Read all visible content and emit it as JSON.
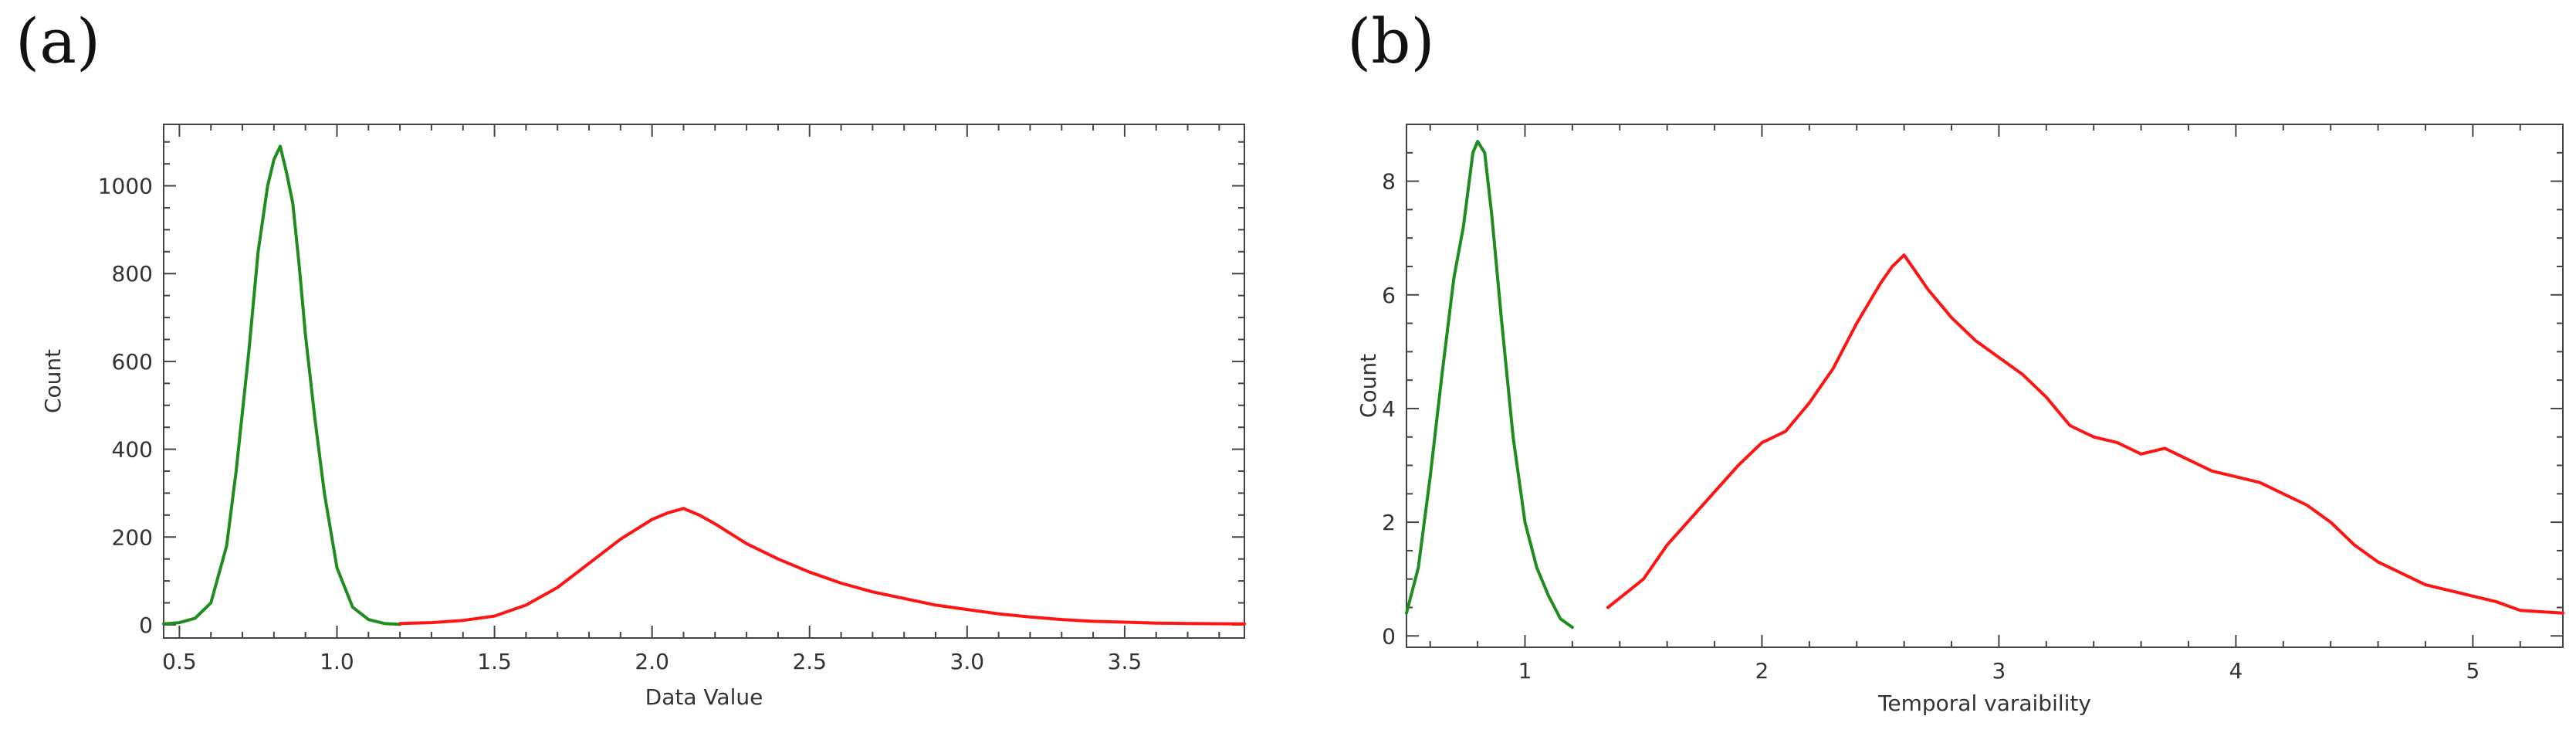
{
  "panels": {
    "a": "(a)",
    "b": "(b)"
  },
  "colors": {
    "green": "#1f8c1f",
    "red": "#ff1414",
    "axis": "#444444"
  },
  "chart_data": [
    {
      "type": "line",
      "xlabel": "Data Value",
      "ylabel": "Count",
      "xlim": [
        0.45,
        3.88
      ],
      "ylim": [
        -30,
        1140
      ],
      "xticks": [
        0.5,
        1.0,
        1.5,
        2.0,
        2.5,
        3.0,
        3.5
      ],
      "xtick_labels": [
        "0.5",
        "1.0",
        "1.5",
        "2.0",
        "2.5",
        "3.0",
        "3.5"
      ],
      "yticks": [
        0,
        200,
        400,
        600,
        800,
        1000
      ],
      "ytick_labels": [
        "0",
        "200",
        "400",
        "600",
        "800",
        "1000"
      ],
      "series": [
        {
          "name": "green",
          "color": "#1f8c1f",
          "x": [
            0.45,
            0.5,
            0.55,
            0.6,
            0.65,
            0.68,
            0.72,
            0.75,
            0.78,
            0.8,
            0.82,
            0.84,
            0.86,
            0.88,
            0.9,
            0.93,
            0.96,
            1.0,
            1.05,
            1.1,
            1.15,
            1.2
          ],
          "y": [
            2,
            5,
            15,
            50,
            180,
            350,
            620,
            850,
            1000,
            1060,
            1090,
            1030,
            960,
            820,
            660,
            470,
            300,
            130,
            40,
            12,
            3,
            1
          ]
        },
        {
          "name": "red",
          "color": "#ff1414",
          "x": [
            1.2,
            1.3,
            1.4,
            1.5,
            1.6,
            1.7,
            1.8,
            1.9,
            2.0,
            2.05,
            2.1,
            2.15,
            2.2,
            2.3,
            2.4,
            2.5,
            2.6,
            2.7,
            2.8,
            2.9,
            3.0,
            3.1,
            3.2,
            3.3,
            3.4,
            3.5,
            3.6,
            3.7,
            3.88
          ],
          "y": [
            3,
            5,
            10,
            20,
            45,
            85,
            140,
            195,
            240,
            255,
            265,
            250,
            230,
            185,
            150,
            120,
            95,
            75,
            60,
            45,
            35,
            25,
            18,
            12,
            8,
            6,
            4,
            3,
            2
          ]
        }
      ]
    },
    {
      "type": "line",
      "xlabel": "Temporal varaibility",
      "ylabel": "Count",
      "xlim": [
        0.5,
        5.38
      ],
      "ylim": [
        -0.2,
        9.0
      ],
      "xticks": [
        1,
        2,
        3,
        4,
        5
      ],
      "xtick_labels": [
        "1",
        "2",
        "3",
        "4",
        "5"
      ],
      "yticks": [
        0,
        2,
        4,
        6,
        8
      ],
      "ytick_labels": [
        "0",
        "2",
        "4",
        "6",
        "8"
      ],
      "series": [
        {
          "name": "green",
          "color": "#1f8c1f",
          "x": [
            0.5,
            0.55,
            0.6,
            0.65,
            0.7,
            0.74,
            0.78,
            0.8,
            0.83,
            0.86,
            0.9,
            0.95,
            1.0,
            1.05,
            1.1,
            1.15,
            1.2
          ],
          "y": [
            0.4,
            1.2,
            2.8,
            4.6,
            6.3,
            7.2,
            8.5,
            8.7,
            8.5,
            7.4,
            5.6,
            3.5,
            2.0,
            1.2,
            0.7,
            0.3,
            0.15
          ]
        },
        {
          "name": "red",
          "color": "#ff1414",
          "x": [
            1.35,
            1.5,
            1.6,
            1.75,
            1.9,
            2.0,
            2.1,
            2.2,
            2.3,
            2.4,
            2.5,
            2.55,
            2.6,
            2.65,
            2.7,
            2.8,
            2.9,
            3.0,
            3.1,
            3.2,
            3.3,
            3.4,
            3.5,
            3.6,
            3.7,
            3.8,
            3.9,
            4.0,
            4.1,
            4.2,
            4.3,
            4.4,
            4.5,
            4.6,
            4.7,
            4.8,
            4.9,
            5.0,
            5.1,
            5.2,
            5.38
          ],
          "y": [
            0.5,
            1.0,
            1.6,
            2.3,
            3.0,
            3.4,
            3.6,
            4.1,
            4.7,
            5.5,
            6.2,
            6.5,
            6.7,
            6.4,
            6.1,
            5.6,
            5.2,
            4.9,
            4.6,
            4.2,
            3.7,
            3.5,
            3.4,
            3.2,
            3.3,
            3.1,
            2.9,
            2.8,
            2.7,
            2.5,
            2.3,
            2.0,
            1.6,
            1.3,
            1.1,
            0.9,
            0.8,
            0.7,
            0.6,
            0.45,
            0.4
          ]
        }
      ]
    }
  ]
}
